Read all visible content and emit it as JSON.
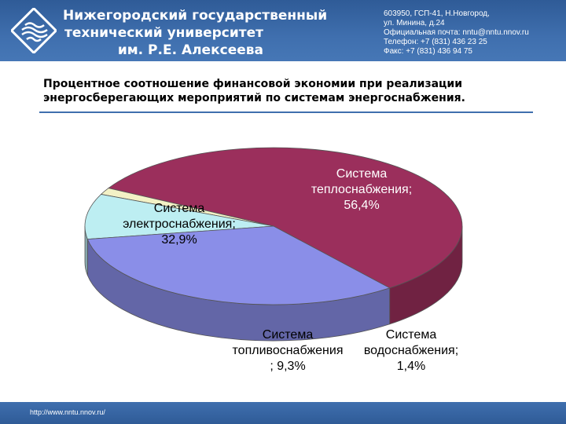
{
  "header": {
    "university_lines": [
      "Нижегородский государственный",
      "технический университет",
      "им. Р.Е. Алексеева"
    ],
    "contact_lines": [
      "603950, ГСП-41, Н.Новгород,",
      "ул. Минина, д.24",
      "Официальная почта: nntu@nntu.nnov.ru",
      "Телефон: +7 (831) 436 23 25",
      "Факс: +7 (831) 436 94 75"
    ]
  },
  "slide": {
    "title_lines": [
      "Процентное соотношение финансовой экономии при реализации",
      "энергосберегающих мероприятий по системам энергоснабжения."
    ]
  },
  "footer": {
    "url": "http://www.nntu.nnov.ru/"
  },
  "chart_data": {
    "type": "pie",
    "title": "",
    "slices": [
      {
        "label_lines": [
          "Система",
          "теплоснабжения;",
          "56,4%"
        ],
        "value": 56.4,
        "color": "#9b2f5c"
      },
      {
        "label_lines": [
          "Система",
          "водоснабжения;",
          "1,4%"
        ],
        "value": 1.4,
        "color": "#f3f1c6"
      },
      {
        "label_lines": [
          "Система",
          "топливоснабжения",
          "; 9,3%"
        ],
        "value": 9.3,
        "color": "#bdeef2"
      },
      {
        "label_lines": [
          "Система",
          "электроснабжения;",
          "32,9%"
        ],
        "value": 32.9,
        "color": "#8a8ee8"
      }
    ]
  }
}
